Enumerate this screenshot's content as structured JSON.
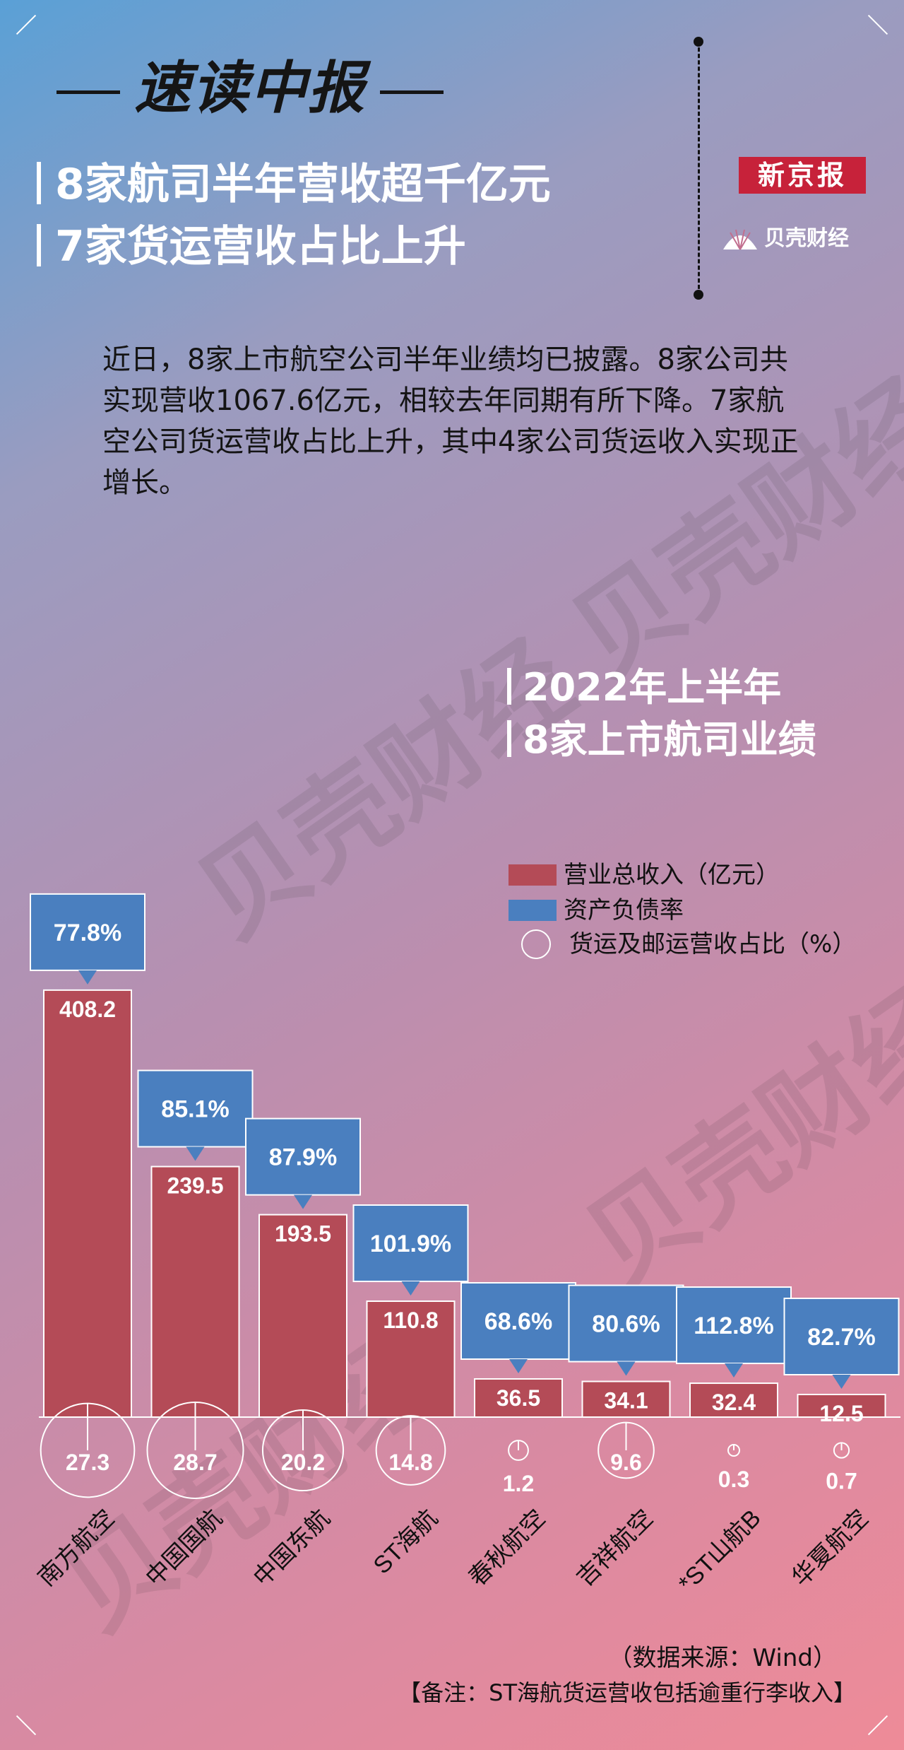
{
  "header": {
    "title": "速读中报",
    "headline_1": "8家航司半年营收超千亿元",
    "headline_2": "7家货运营收占比上升",
    "logo_xjb": "新京报",
    "logo_bk": "贝壳财经"
  },
  "intro": "近日，8家上市航空公司半年业绩均已披露。8家公司共实现营收1067.6亿元，相较去年同期有所下降。7家航空公司货运营收占比上升，其中4家公司货运收入实现正增长。",
  "watermark": "贝壳财经",
  "colors": {
    "revenue": "#b44b57",
    "debt": "#4a7fbf",
    "circle": "#ffffff"
  },
  "chart_data": {
    "type": "bar",
    "title_1": "2022年上半年",
    "title_2": "8家上市航司业绩",
    "categories": [
      "南方航空",
      "中国国航",
      "中国东航",
      "ST海航",
      "春秋航空",
      "吉祥航空",
      "*ST山航B",
      "华夏航空"
    ],
    "revenue_labels": [
      "408.2",
      "239.5",
      "193.5",
      "110.8",
      "36.5",
      "34.1",
      "32.4",
      "12.5"
    ],
    "debt_labels": [
      "77.8%",
      "85.1%",
      "87.9%",
      "101.9%",
      "68.6%",
      "80.6%",
      "112.8%",
      "82.7%"
    ],
    "cargo_labels": [
      "27.3",
      "28.7",
      "20.2",
      "14.8",
      "1.2",
      "9.6",
      "0.3",
      "0.7"
    ],
    "series": [
      {
        "name": "营业总收入（亿元）",
        "values": [
          408.2,
          239.5,
          193.5,
          110.8,
          36.5,
          34.1,
          32.4,
          12.5
        ]
      },
      {
        "name": "资产负债率",
        "values": [
          77.8,
          85.1,
          87.9,
          101.9,
          68.6,
          80.6,
          112.8,
          82.7
        ]
      },
      {
        "name": "货运及邮运营收占比（%）",
        "values": [
          27.3,
          28.7,
          20.2,
          14.8,
          1.2,
          9.6,
          0.3,
          0.7
        ]
      }
    ],
    "legend": [
      "营业总收入（亿元）",
      "资产负债率",
      "货运及邮运营收占比（%）"
    ]
  },
  "footer": {
    "source": "（数据来源：Wind）",
    "note": "【备注：ST海航货运营收包括逾重行李收入】"
  }
}
